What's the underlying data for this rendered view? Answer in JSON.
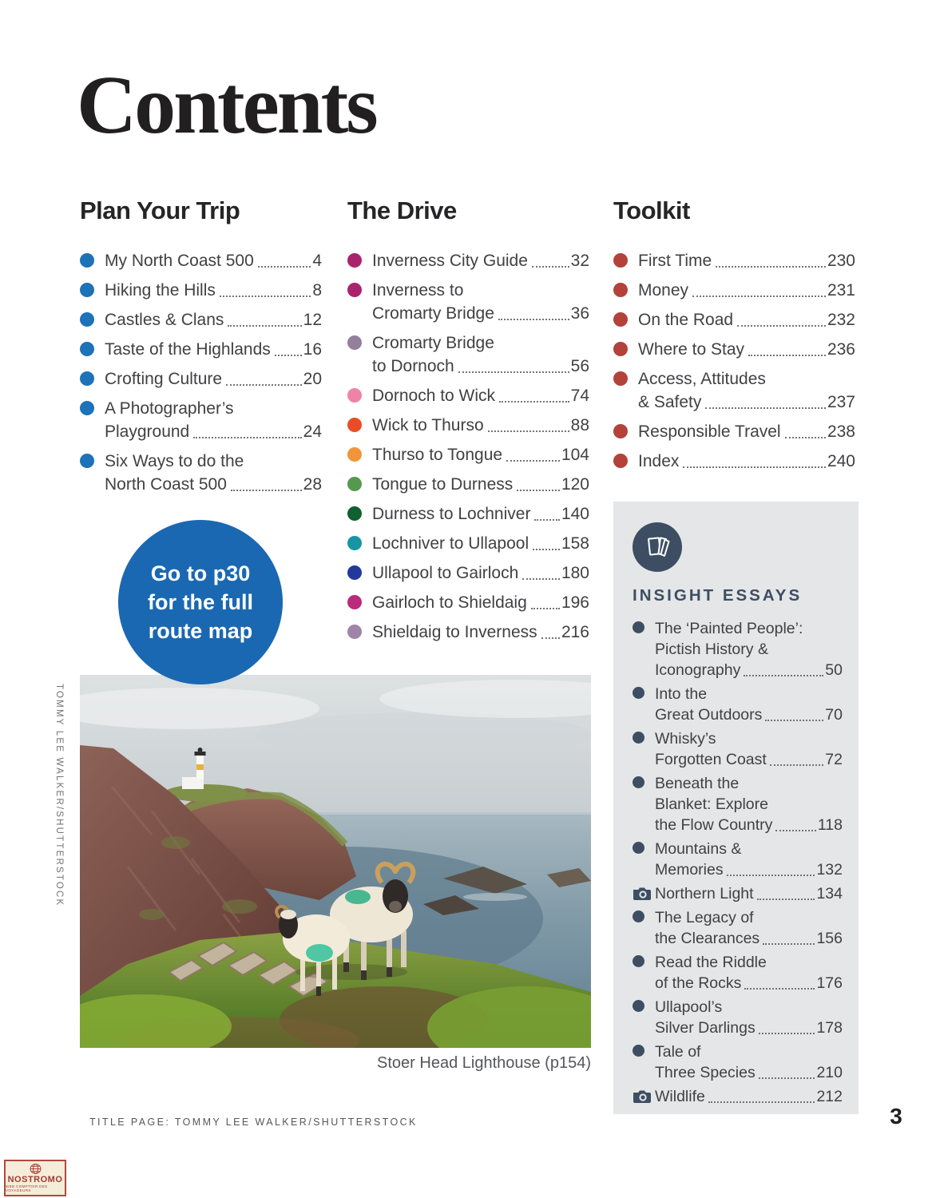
{
  "page": {
    "title": "Contents",
    "page_number": "3",
    "footer_credit": "TITLE PAGE: TOMMY LEE WALKER/SHUTTERSTOCK"
  },
  "colors": {
    "plan_bullet": "#1d72b8",
    "toolkit_bullet": "#b2423a",
    "insight_accent": "#3d4e62",
    "badge_blue": "#1a68b2",
    "box_gray": "#e4e6e8"
  },
  "sections": {
    "plan": {
      "heading": "Plan Your Trip",
      "bullet_color": "#1d72b8",
      "items": [
        {
          "lines": [
            "My North Coast 500"
          ],
          "page": "4"
        },
        {
          "lines": [
            "Hiking the Hills"
          ],
          "page": "8"
        },
        {
          "lines": [
            "Castles & Clans"
          ],
          "page": "12"
        },
        {
          "lines": [
            "Taste of the Highlands"
          ],
          "page": "16"
        },
        {
          "lines": [
            "Crofting Culture"
          ],
          "page": "20"
        },
        {
          "lines": [
            "A Photographer’s",
            "Playground"
          ],
          "page": "24"
        },
        {
          "lines": [
            "Six Ways to do the",
            "North Coast 500"
          ],
          "page": "28"
        }
      ]
    },
    "drive": {
      "heading": "The Drive",
      "bullet_color": "#a9246d",
      "items": [
        {
          "lines": [
            "Inverness City Guide"
          ],
          "page": "32",
          "color": "#a9246d"
        },
        {
          "lines": [
            "Inverness to",
            "Cromarty Bridge"
          ],
          "page": "36",
          "color": "#a9246d"
        },
        {
          "lines": [
            "Cromarty Bridge",
            "to Dornoch"
          ],
          "page": "56",
          "color": "#93809c"
        },
        {
          "lines": [
            "Dornoch to Wick"
          ],
          "page": "74",
          "color": "#ef83a7"
        },
        {
          "lines": [
            "Wick to Thurso"
          ],
          "page": "88",
          "color": "#ea4d25"
        },
        {
          "lines": [
            "Thurso to Tongue"
          ],
          "page": "104",
          "color": "#f2953a"
        },
        {
          "lines": [
            "Tongue to Durness"
          ],
          "page": "120",
          "color": "#55994e"
        },
        {
          "lines": [
            "Durness to Lochniver"
          ],
          "page": "140",
          "color": "#11602f"
        },
        {
          "lines": [
            "Lochniver to Ullapool"
          ],
          "page": "158",
          "color": "#1795a4"
        },
        {
          "lines": [
            "Ullapool to Gairloch"
          ],
          "page": "180",
          "color": "#24389c"
        },
        {
          "lines": [
            "Gairloch to Shieldaig"
          ],
          "page": "196",
          "color": "#bc2a7c"
        },
        {
          "lines": [
            "Shieldaig to Inverness"
          ],
          "page": "216",
          "color": "#9e85a8"
        }
      ]
    },
    "toolkit": {
      "heading": "Toolkit",
      "bullet_color": "#b2423a",
      "items": [
        {
          "lines": [
            "First Time"
          ],
          "page": "230"
        },
        {
          "lines": [
            "Money"
          ],
          "page": "231"
        },
        {
          "lines": [
            "On the Road"
          ],
          "page": "232"
        },
        {
          "lines": [
            "Where to Stay"
          ],
          "page": "236"
        },
        {
          "lines": [
            "Access, Attitudes",
            "& Safety"
          ],
          "page": "237"
        },
        {
          "lines": [
            "Responsible Travel"
          ],
          "page": "238"
        },
        {
          "lines": [
            "Index"
          ],
          "page": "240"
        }
      ]
    }
  },
  "insight": {
    "heading": "INSIGHT ESSAYS",
    "icon": "book-pages-icon",
    "bullet_color": "#3d4e62",
    "items": [
      {
        "lines": [
          "The ‘Painted People’:",
          "Pictish History &",
          "Iconography"
        ],
        "page": "50"
      },
      {
        "lines": [
          "Into the",
          "Great Outdoors"
        ],
        "page": "70"
      },
      {
        "lines": [
          "Whisky’s",
          "Forgotten Coast"
        ],
        "page": "72"
      },
      {
        "lines": [
          "Beneath the",
          "Blanket: Explore",
          "the Flow Country"
        ],
        "page": "118"
      },
      {
        "lines": [
          "Mountains &",
          "Memories"
        ],
        "page": "132"
      },
      {
        "lines": [
          "Northern Light"
        ],
        "page": "134",
        "icon": "camera"
      },
      {
        "lines": [
          "The Legacy of",
          "the Clearances"
        ],
        "page": "156"
      },
      {
        "lines": [
          "Read the Riddle",
          "of the Rocks"
        ],
        "page": "176"
      },
      {
        "lines": [
          "Ullapool’s",
          "Silver Darlings"
        ],
        "page": "178"
      },
      {
        "lines": [
          "Tale of",
          "Three Species"
        ],
        "page": "210"
      },
      {
        "lines": [
          "Wildlife"
        ],
        "page": "212",
        "icon": "camera"
      }
    ]
  },
  "badge": {
    "lines": [
      "Go to p30",
      "for the full",
      "route map"
    ],
    "color": "#1a68b2"
  },
  "photo": {
    "caption": "Stoer Head Lighthouse (p154)",
    "credit": "TOMMY LEE WALKER/SHUTTERSTOCK"
  },
  "stamp": {
    "name": "NOSTROMO",
    "tagline": "WEB COMPTOIR DES VOYAGEURS"
  }
}
